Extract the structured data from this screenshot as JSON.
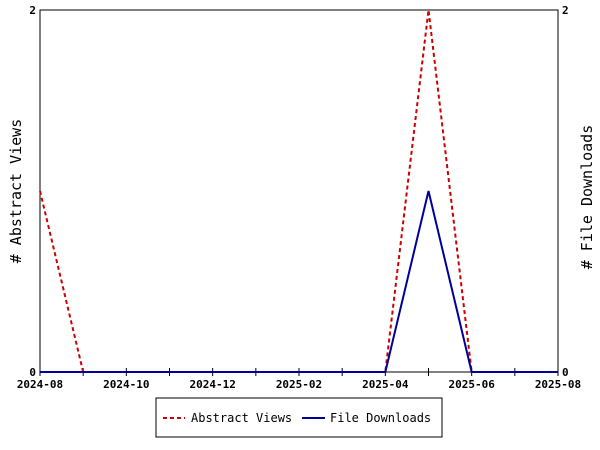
{
  "chart_data": {
    "type": "line",
    "title": "",
    "xlabel": "",
    "ylabel_left": "# Abstract Views",
    "ylabel_right": "# File Downloads",
    "x": [
      "2024-08",
      "2024-09",
      "2024-10",
      "2024-11",
      "2024-12",
      "2025-01",
      "2025-02",
      "2025-03",
      "2025-04",
      "2025-05",
      "2025-06",
      "2025-07",
      "2025-08"
    ],
    "x_tick_labels": [
      "2024-08",
      "2024-10",
      "2024-12",
      "2025-02",
      "2025-04",
      "2025-06",
      "2025-08"
    ],
    "x_tick_label_indices": [
      0,
      2,
      4,
      6,
      8,
      10,
      12
    ],
    "ylim_left": [
      0,
      2
    ],
    "ylim_right": [
      0,
      2
    ],
    "y_tick_labels_left": [
      "0",
      "2"
    ],
    "y_tick_labels_right": [
      "0",
      "2"
    ],
    "grid": false,
    "legend_position": "bottom-center",
    "series": [
      {
        "name": "Abstract Views",
        "axis": "left",
        "color": "#cc0000",
        "style": "dashed",
        "values": [
          1,
          0,
          0,
          0,
          0,
          0,
          0,
          0,
          0,
          2,
          0,
          0,
          0
        ]
      },
      {
        "name": "File Downloads",
        "axis": "right",
        "color": "#000099",
        "style": "solid",
        "values": [
          0,
          0,
          0,
          0,
          0,
          0,
          0,
          0,
          0,
          1,
          0,
          0,
          0
        ]
      }
    ]
  }
}
